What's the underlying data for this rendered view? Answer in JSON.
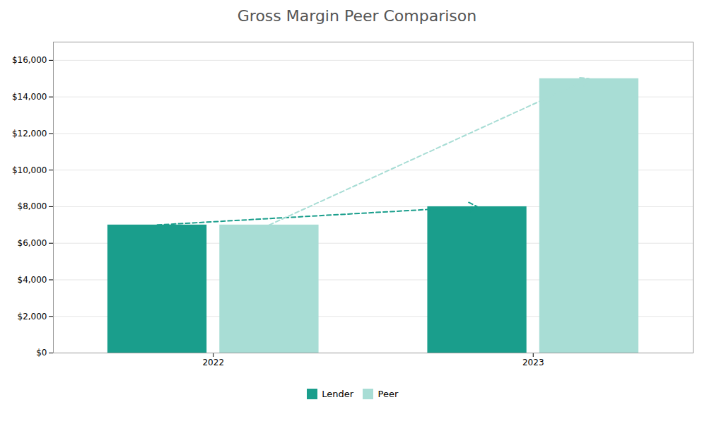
{
  "chart_data": {
    "type": "bar",
    "title": "Gross Margin Peer Comparison",
    "categories": [
      "2022",
      "2023"
    ],
    "series": [
      {
        "name": "Lender",
        "color": "#1a9e8c",
        "values": [
          7000,
          8000
        ]
      },
      {
        "name": "Peer",
        "color": "#a8ddd5",
        "values": [
          7000,
          15000
        ]
      }
    ],
    "ylim": [
      0,
      17000
    ],
    "yticks": [
      {
        "value": 0,
        "label": "$0"
      },
      {
        "value": 2000,
        "label": "$2,000"
      },
      {
        "value": 4000,
        "label": "$4,000"
      },
      {
        "value": 6000,
        "label": "$6,000"
      },
      {
        "value": 8000,
        "label": "$8,000"
      },
      {
        "value": 10000,
        "label": "$10,000"
      },
      {
        "value": 12000,
        "label": "$12,000"
      },
      {
        "value": 14000,
        "label": "$14,000"
      },
      {
        "value": 16000,
        "label": "$16,000"
      }
    ],
    "grid": true,
    "legend": "bottom"
  }
}
